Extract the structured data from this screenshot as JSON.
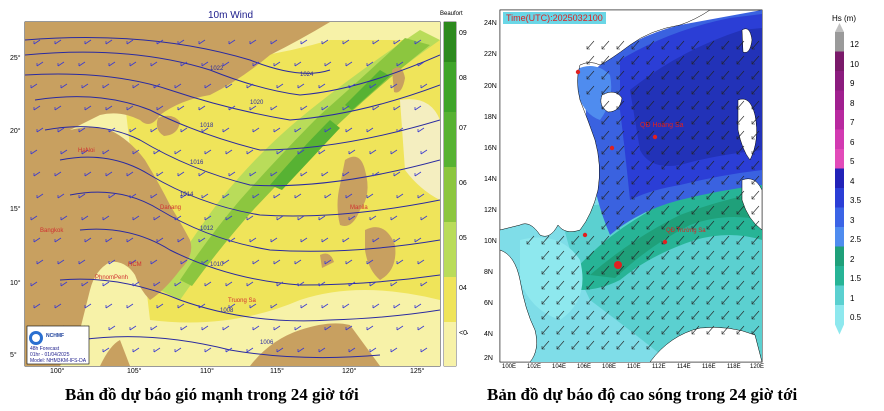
{
  "left_map": {
    "title": "10m Wind",
    "legend_title": "Beaufort",
    "legend_levels": [
      "09",
      "08",
      "07",
      "06",
      "05",
      "04",
      "<04"
    ],
    "lat_labels": [
      "25°",
      "20°",
      "15°",
      "10°",
      "5°"
    ],
    "lon_labels": [
      "100°",
      "105°",
      "110°",
      "115°",
      "120°",
      "125°"
    ],
    "isobar_labels": [
      "1024",
      "1022",
      "1020",
      "1018",
      "1016",
      "1014",
      "1012",
      "1010",
      "1008",
      "1006"
    ],
    "place_labels": [
      "HaNoi",
      "Danang",
      "Bangkok",
      "PhnomPenh",
      "HCM",
      "Manila",
      "Truong Sa"
    ],
    "logo_text": "NCHMF",
    "info_lines": [
      "48h Forecast",
      "01hr - 01/04/2025",
      "Model: NHM3KM-IFS-DA"
    ],
    "colors": {
      "land": "#c8a060",
      "sea_light": "#f7f2a8",
      "sea_yellow": "#efe45a",
      "green1": "#b9dc5a",
      "green2": "#8cc63f",
      "green3": "#57b233",
      "isobar": "#2a2aa0"
    }
  },
  "right_map": {
    "time_label": "Time(UTC):2025032100",
    "legend_title": "Hs (m)",
    "legend_levels": [
      "12",
      "10",
      "9",
      "8",
      "7",
      "6",
      "5",
      "4",
      "3.5",
      "3",
      "2.5",
      "2",
      "1.5",
      "1",
      "0.5"
    ],
    "legend_colors": [
      "#9a9a9a",
      "#7a1a6a",
      "#8b1c7e",
      "#a0208f",
      "#b8299f",
      "#d23ab1",
      "#e24bb9",
      "#2222b8",
      "#2b3ed6",
      "#3b64e6",
      "#4f8cef",
      "#1fa07a",
      "#27b496",
      "#5bd0d0",
      "#8ee8ee"
    ],
    "lat_labels": [
      "24N",
      "22N",
      "20N",
      "18N",
      "16N",
      "14N",
      "12N",
      "10N",
      "8N",
      "6N",
      "4N",
      "2N"
    ],
    "lon_labels": [
      "100E",
      "102E",
      "104E",
      "106E",
      "108E",
      "110E",
      "112E",
      "114E",
      "116E",
      "118E",
      "120E"
    ],
    "place_labels": [
      "QĐ Hoàng Sa",
      "QĐ Trường Sa"
    ],
    "colors": {
      "land": "#ffffff",
      "deep": "#2232b8",
      "mid": "#3a62e0",
      "green": "#20a070",
      "teal": "#40c0c0",
      "light": "#7fdde8"
    }
  },
  "captions": {
    "left": "Bản đồ dự báo gió mạnh trong 24 giờ tới",
    "right": "Bản đồ dự báo độ cao sóng trong 24 giờ tới"
  }
}
